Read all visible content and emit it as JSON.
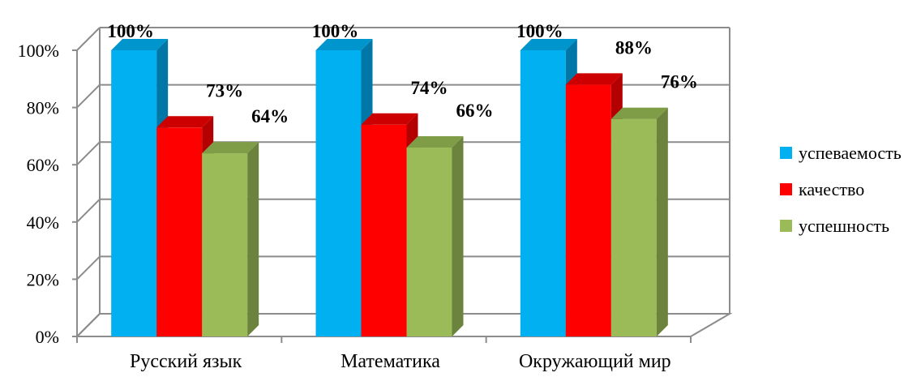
{
  "chart_data": {
    "type": "bar",
    "categories": [
      "Русский язык",
      "Математика",
      "Окружающий мир"
    ],
    "series": [
      {
        "name": "успеваемость",
        "values": [
          100,
          100,
          100
        ],
        "color": "#00b0f0",
        "side_color": "#0077a6",
        "top_color": "#0095cc"
      },
      {
        "name": "качество",
        "values": [
          73,
          74,
          88
        ],
        "color": "#ff0000",
        "side_color": "#b30000",
        "top_color": "#cc0000"
      },
      {
        "name": "успешность",
        "values": [
          64,
          66,
          76
        ],
        "color": "#9bbb59",
        "side_color": "#6b833c",
        "top_color": "#7f9c47"
      }
    ],
    "data_labels": [
      [
        "100%",
        "100%",
        "100%"
      ],
      [
        "73%",
        "74%",
        "88%"
      ],
      [
        "64%",
        "66%",
        "76%"
      ]
    ],
    "y_ticks": [
      "0%",
      "20%",
      "40%",
      "60%",
      "80%",
      "100%"
    ],
    "ylim": [
      0,
      100
    ],
    "y_unit": "%",
    "grid": true,
    "legend_position": "right",
    "three_d": true
  }
}
